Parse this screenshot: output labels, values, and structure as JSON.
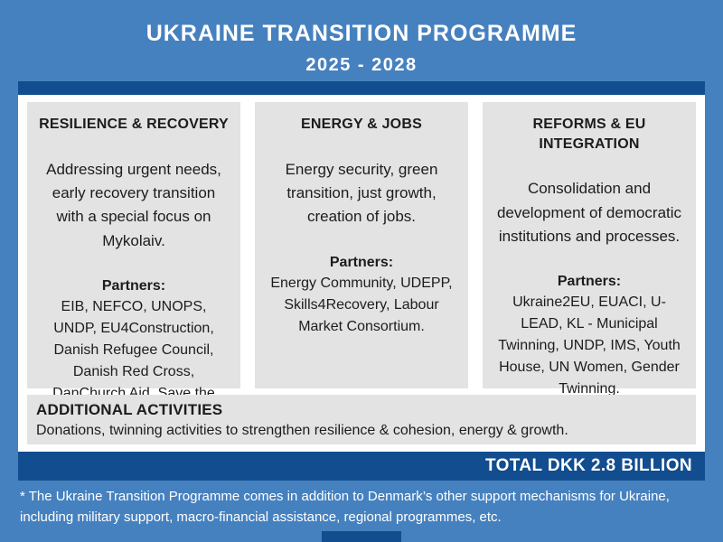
{
  "poster": {
    "title": "UKRAINE TRANSITION PROGRAMME",
    "period": "2025 - 2028"
  },
  "pillars": [
    {
      "title": "RESILIENCE & RECOVERY",
      "description": "Addressing urgent needs, early recovery transition with a special focus on Mykolaiv.",
      "partners_label": "Partners:",
      "partners": "EIB, NEFCO, UNOPS, UNDP, EU4Construction, Danish Refugee Council, Danish Red Cross, DanChurch Aid, Save the Children."
    },
    {
      "title": "ENERGY & JOBS",
      "description": "Energy security, green transition, just growth, creation of jobs.",
      "partners_label": "Partners:",
      "partners": "Energy Community, UDEPP, Skills4Recovery, Labour Market Consortium."
    },
    {
      "title": "REFORMS & EU INTEGRATION",
      "description": "Consolidation and development of democratic institutions and processes.",
      "partners_label": "Partners:",
      "partners": "Ukraine2EU, EUACI, U-LEAD, KL - Municipal Twinning, UNDP, IMS, Youth House, UN Women, Gender Twinning."
    }
  ],
  "additional_activities": {
    "title": "ADDITIONAL ACTIVITIES",
    "description": "Donations, twinning activities to strengthen resilience & cohesion, energy & growth."
  },
  "total_banner": {
    "label": "TOTAL DKK 2.8 BILLION"
  },
  "footnote": {
    "line1": "* The Ukraine Transition Programme comes in addition to Denmark’s other support mechanisms for Ukraine,",
    "line2": "including military support, macro-financial assistance, regional programmes, etc."
  },
  "colors": {
    "background_blue": "#4681bf",
    "accent_navy": "#114d8f",
    "card_gray": "#e3e3e3",
    "text_dark": "#1c1c1c",
    "text_white": "#ffffff"
  }
}
